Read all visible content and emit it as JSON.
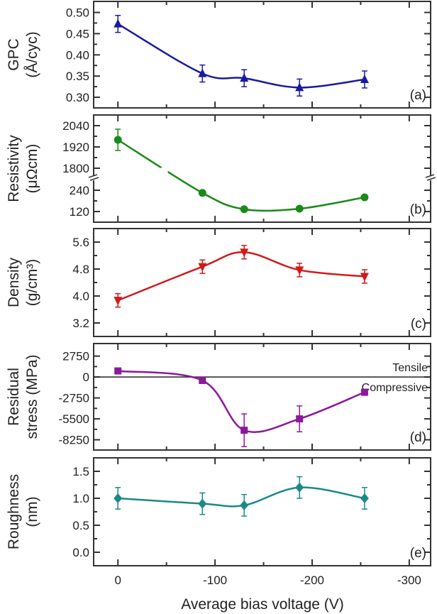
{
  "chart_data": [
    {
      "type": "line",
      "panel_label": "(a)",
      "ylabel": [
        "GPC",
        "(Å/cyc)"
      ],
      "color": "#1a1aa0",
      "marker": "triangle-up",
      "x": [
        0,
        -87,
        -130,
        -187,
        -254
      ],
      "y": [
        0.473,
        0.356,
        0.345,
        0.323,
        0.342
      ],
      "yerr": [
        0.02,
        0.02,
        0.02,
        0.02,
        0.02
      ],
      "yticks": [
        "0.30",
        "0.35",
        "0.40",
        "0.45",
        "0.50"
      ],
      "ytick_values": [
        0.3,
        0.35,
        0.4,
        0.45,
        0.5
      ],
      "ylim": [
        0.275,
        0.526
      ]
    },
    {
      "type": "line",
      "panel_label": "(b)",
      "ylabel": [
        "Resistivity",
        "(μΩcm)"
      ],
      "color": "#1a8a1a",
      "marker": "circle",
      "axis_break": [
        240,
        1800
      ],
      "x": [
        0,
        -87,
        -130,
        -187,
        -254
      ],
      "y": [
        1960,
        225,
        133,
        136,
        200
      ],
      "yerr": [
        60,
        0,
        0,
        0,
        0
      ],
      "yticks": [
        "120",
        "240",
        "1800",
        "1920",
        "2040"
      ],
      "ytick_values": [
        120,
        240,
        1800,
        1920,
        2040
      ]
    },
    {
      "type": "line",
      "panel_label": "(c)",
      "ylabel": [
        "Density",
        "(g/cm³)"
      ],
      "color": "#d01a1a",
      "marker": "triangle-down",
      "x": [
        0,
        -87,
        -130,
        -187,
        -254
      ],
      "y": [
        3.87,
        4.87,
        5.3,
        4.77,
        4.58
      ],
      "yerr": [
        0.2,
        0.2,
        0.2,
        0.2,
        0.2
      ],
      "yticks": [
        "3.2",
        "4.0",
        "4.8",
        "5.6"
      ],
      "ytick_values": [
        3.2,
        4.0,
        4.8,
        5.6
      ],
      "ylim": [
        2.8,
        6.0
      ]
    },
    {
      "type": "line",
      "panel_label": "(d)",
      "ylabel": [
        "Residual",
        "stress (MPa)"
      ],
      "color": "#8a1a9a",
      "marker": "square",
      "x": [
        0,
        -87,
        -130,
        -187,
        -254
      ],
      "y": [
        800,
        -450,
        -7000,
        -5500,
        -2000
      ],
      "yerr": [
        0,
        0,
        2150,
        1700,
        400
      ],
      "yticks": [
        "-8250",
        "-5500",
        "-2750",
        "0",
        "2750"
      ],
      "ytick_values": [
        -8250,
        -5500,
        -2750,
        0,
        2750
      ],
      "ylim": [
        -9600,
        4400
      ],
      "annotations": [
        "Tensile",
        "Compressive"
      ],
      "reference_line": 0
    },
    {
      "type": "line",
      "panel_label": "(e)",
      "ylabel": [
        "Roughness",
        "(nm)"
      ],
      "color": "#1a8a88",
      "marker": "diamond",
      "x": [
        0,
        -87,
        -130,
        -187,
        -254
      ],
      "y": [
        1.0,
        0.9,
        0.87,
        1.2,
        1.0
      ],
      "yerr": [
        0.2,
        0.2,
        0.2,
        0.2,
        0.2
      ],
      "yticks": [
        "0.0",
        "0.5",
        "1.0",
        "1.5"
      ],
      "ytick_values": [
        0.0,
        0.5,
        1.0,
        1.5
      ],
      "ylim": [
        -0.25,
        1.75
      ]
    }
  ],
  "xaxis": {
    "xlabel": "Average bias voltage (V)",
    "xticks": [
      "0",
      "-100",
      "-200",
      "-300"
    ],
    "xtick_values": [
      0,
      -100,
      -200,
      -300
    ],
    "xlim": [
      25,
      -322
    ]
  }
}
